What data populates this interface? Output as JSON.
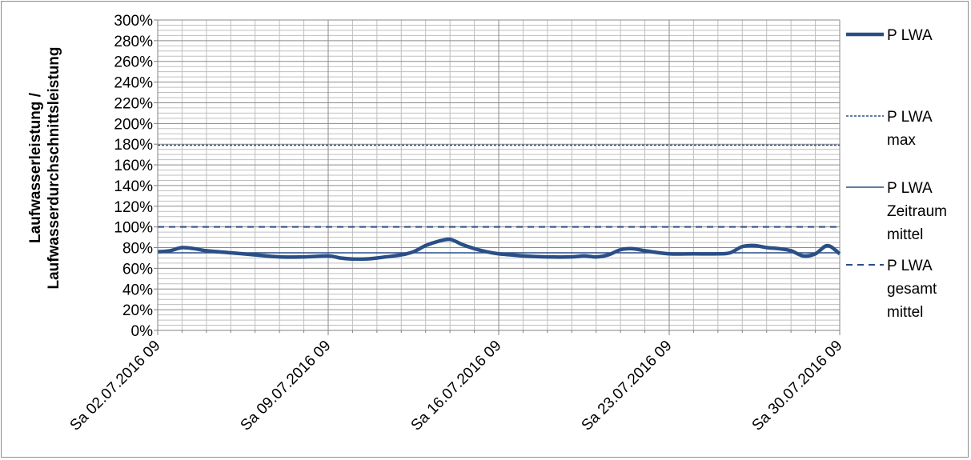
{
  "chart_data": {
    "type": "line",
    "ylabel_lines": [
      "Laufwasserleistung /",
      "Laufwasserdurchschnittsleistung"
    ],
    "y_ticks": [
      "0%",
      "20%",
      "40%",
      "60%",
      "80%",
      "100%",
      "120%",
      "140%",
      "160%",
      "180%",
      "200%",
      "220%",
      "240%",
      "260%",
      "280%",
      "300%"
    ],
    "ylim": [
      0,
      300
    ],
    "x_ticks": [
      "Sa 02.07.2016 09",
      "Sa 09.07.2016 09",
      "Sa 16.07.2016 09",
      "Sa 23.07.2016 09",
      "Sa 30.07.2016 09"
    ],
    "xlim": [
      0,
      28
    ],
    "grid": true,
    "legend_position": "right",
    "series": [
      {
        "name": "P LWA",
        "style": "thick",
        "color": "#2a4f86",
        "x": [
          0,
          0.5,
          1,
          1.5,
          2,
          3,
          4,
          5,
          6,
          7,
          7.5,
          8,
          8.5,
          9,
          10,
          10.5,
          11,
          11.5,
          12,
          12.5,
          13,
          13.5,
          14,
          14.5,
          15,
          16,
          17,
          17.5,
          18,
          18.5,
          19,
          19.5,
          20,
          21,
          22,
          23,
          23.5,
          24,
          24.5,
          25,
          25.5,
          26,
          26.5,
          27,
          27.5,
          28
        ],
        "y": [
          76,
          77,
          80,
          79,
          77,
          75,
          73,
          71,
          71,
          72,
          70,
          69,
          69,
          70,
          73,
          76,
          82,
          86,
          88,
          83,
          79,
          76,
          74,
          73,
          72,
          71,
          71,
          72,
          71,
          73,
          78,
          79,
          77,
          74,
          74,
          74,
          75,
          81,
          82,
          80,
          79,
          77,
          72,
          74,
          82,
          74
        ]
      },
      {
        "name": "P LWA max",
        "style": "dotted",
        "color": "#2a4f86",
        "x": [
          0,
          28
        ],
        "y": [
          179,
          179
        ]
      },
      {
        "name": "P LWA Zeitraum mittel",
        "style": "solid",
        "color": "#2a4f86",
        "x": [
          0,
          28
        ],
        "y": [
          75,
          75
        ]
      },
      {
        "name": "P LWA gesamt mittel",
        "style": "dashed",
        "color": "#2a4f86",
        "x": [
          0,
          28
        ],
        "y": [
          100,
          100
        ]
      }
    ],
    "legend": [
      {
        "lines": [
          "P LWA"
        ]
      },
      {
        "lines": [
          "P LWA",
          "max"
        ]
      },
      {
        "lines": [
          "P LWA",
          "Zeitraum",
          "mittel"
        ]
      },
      {
        "lines": [
          "P LWA",
          "gesamt",
          "mittel"
        ]
      }
    ]
  }
}
